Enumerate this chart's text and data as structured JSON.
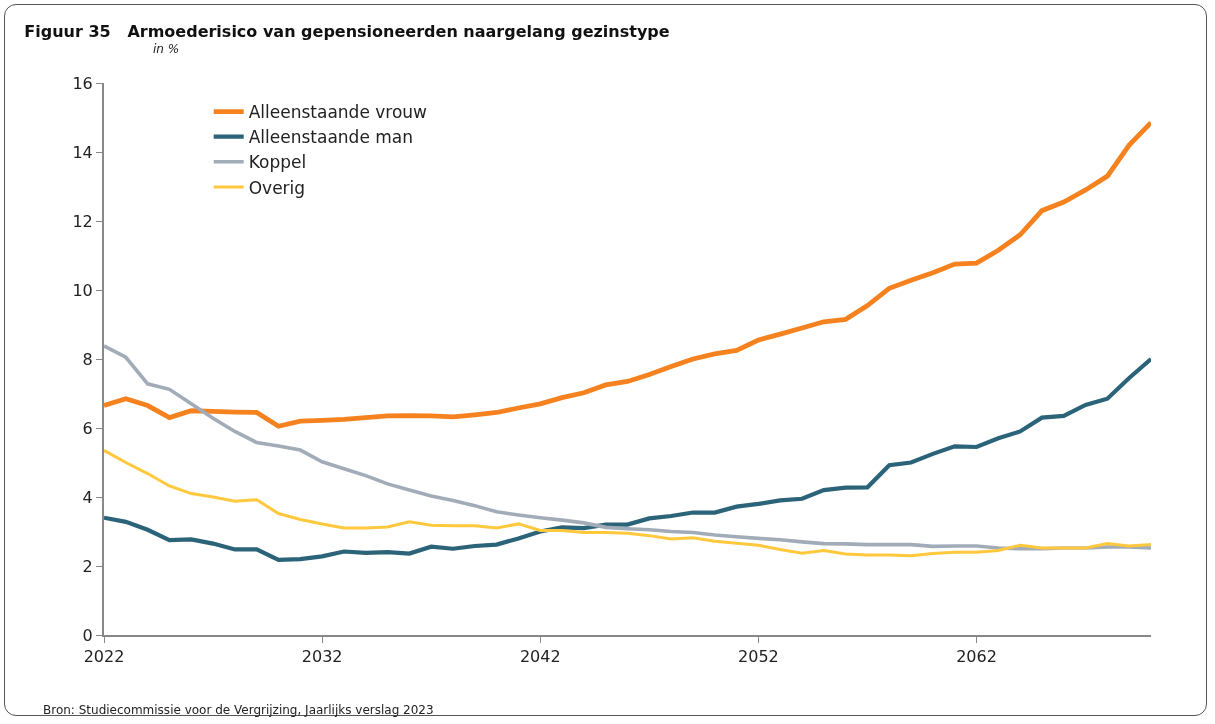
{
  "chart_data": {
    "type": "line",
    "title": "Figuur 35   Armoederisico van gepensioneerden naargelang gezinstype",
    "subtitle": "in %",
    "x": [
      2022,
      2023,
      2024,
      2025,
      2026,
      2027,
      2028,
      2029,
      2030,
      2031,
      2032,
      2033,
      2034,
      2035,
      2036,
      2037,
      2038,
      2039,
      2040,
      2041,
      2042,
      2043,
      2044,
      2045,
      2046,
      2047,
      2048,
      2049,
      2050,
      2051,
      2052,
      2053,
      2054,
      2055,
      2056,
      2057,
      2058,
      2059,
      2060,
      2061,
      2062,
      2063,
      2064,
      2065,
      2066,
      2067,
      2068,
      2069,
      2070
    ],
    "series": [
      {
        "name": "Alleenstaande vrouw",
        "color": "#f5821f",
        "values": [
          6.65,
          6.85,
          6.65,
          6.3,
          6.5,
          6.48,
          6.46,
          6.45,
          6.05,
          6.2,
          6.22,
          6.25,
          6.3,
          6.35,
          6.36,
          6.35,
          6.32,
          6.38,
          6.45,
          6.58,
          6.7,
          6.88,
          7.02,
          7.25,
          7.35,
          7.55,
          7.78,
          8.0,
          8.15,
          8.25,
          8.55,
          8.72,
          8.9,
          9.08,
          9.15,
          9.55,
          10.05,
          10.28,
          10.5,
          10.75,
          10.78,
          11.15,
          11.6,
          12.3,
          12.55,
          12.9,
          13.3,
          14.2,
          14.85
        ]
      },
      {
        "name": "Alleenstaande man",
        "color": "#2b6378",
        "values": [
          3.4,
          3.28,
          3.05,
          2.75,
          2.77,
          2.65,
          2.48,
          2.48,
          2.18,
          2.2,
          2.28,
          2.42,
          2.38,
          2.4,
          2.36,
          2.56,
          2.5,
          2.58,
          2.62,
          2.8,
          3.0,
          3.12,
          3.1,
          3.2,
          3.2,
          3.38,
          3.45,
          3.55,
          3.55,
          3.72,
          3.8,
          3.9,
          3.95,
          4.2,
          4.27,
          4.28,
          4.92,
          5.0,
          5.25,
          5.47,
          5.45,
          5.7,
          5.9,
          6.3,
          6.35,
          6.67,
          6.85,
          7.45,
          8.0
        ]
      },
      {
        "name": "Koppel",
        "color": "#a2acb9",
        "values": [
          8.38,
          8.05,
          7.28,
          7.12,
          6.7,
          6.28,
          5.9,
          5.58,
          5.48,
          5.36,
          5.02,
          4.82,
          4.62,
          4.38,
          4.2,
          4.03,
          3.9,
          3.75,
          3.57,
          3.48,
          3.4,
          3.33,
          3.25,
          3.12,
          3.08,
          3.05,
          3.0,
          2.97,
          2.9,
          2.85,
          2.8,
          2.76,
          2.7,
          2.65,
          2.64,
          2.62,
          2.62,
          2.62,
          2.57,
          2.58,
          2.58,
          2.52,
          2.5,
          2.5,
          2.52,
          2.52,
          2.55,
          2.55,
          2.52
        ]
      },
      {
        "name": "Overig",
        "color": "#ffc83d",
        "values": [
          5.35,
          5.0,
          4.68,
          4.32,
          4.1,
          4.0,
          3.88,
          3.92,
          3.52,
          3.35,
          3.22,
          3.1,
          3.1,
          3.13,
          3.28,
          3.18,
          3.17,
          3.17,
          3.1,
          3.22,
          3.03,
          3.03,
          2.97,
          2.97,
          2.95,
          2.88,
          2.78,
          2.82,
          2.72,
          2.66,
          2.6,
          2.48,
          2.37,
          2.45,
          2.35,
          2.32,
          2.32,
          2.3,
          2.36,
          2.4,
          2.4,
          2.45,
          2.6,
          2.52,
          2.52,
          2.52,
          2.65,
          2.58,
          2.62
        ]
      }
    ],
    "xlim": [
      2022,
      2070
    ],
    "xticks": [
      2022,
      2032,
      2042,
      2052,
      2062
    ],
    "ylim": [
      0,
      16
    ],
    "yticks": [
      0,
      2,
      4,
      6,
      8,
      10,
      12,
      14,
      16
    ],
    "grid": false,
    "legend": "top left",
    "marker": "none",
    "line_style": "solid",
    "annotations": [
      "Bron: Studiecommissie voor de Vergrijzing, Jaarlijks verslag 2023"
    ]
  }
}
